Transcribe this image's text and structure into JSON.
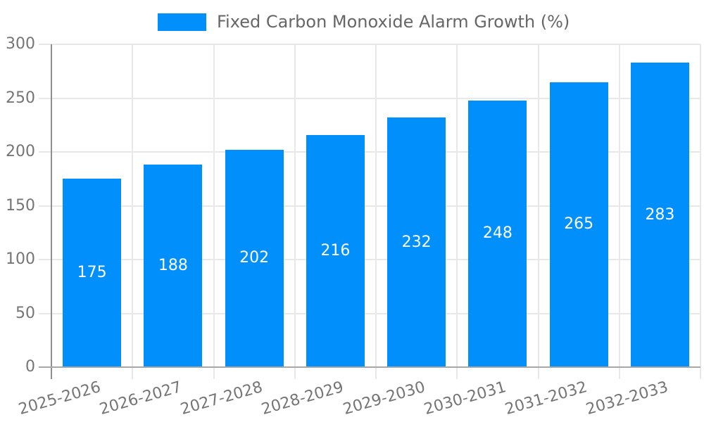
{
  "legend": {
    "label": "Fixed Carbon Monoxide Alarm Growth (%)"
  },
  "colors": {
    "bar": "#008FFB",
    "grid": "#e8e8e8",
    "y_axis": "#8f8f8f",
    "x_axis": "#a8a8a8",
    "tick_label": "#757575",
    "legend_text": "#666666",
    "value_label": "#ffffff",
    "background": "#ffffff"
  },
  "chart_data": {
    "type": "bar",
    "title": "",
    "categories": [
      "2025-2026",
      "2026-2027",
      "2027-2028",
      "2028-2029",
      "2029-2030",
      "2030-2031",
      "2031-2032",
      "2032-2033"
    ],
    "series": [
      {
        "name": "Fixed Carbon Monoxide Alarm Growth (%)",
        "values": [
          175,
          188,
          202,
          216,
          232,
          248,
          265,
          283
        ]
      }
    ],
    "value_labels": [
      "175",
      "188",
      "202",
      "216",
      "232",
      "248",
      "265",
      "283"
    ],
    "xlabel": "",
    "ylabel": "",
    "ylim": [
      0,
      300
    ],
    "yticks": [
      0,
      50,
      100,
      150,
      200,
      250,
      300
    ],
    "grid": true,
    "legend_position": "top-center",
    "value_label_position": "inside-center",
    "x_tick_rotation_deg": -16
  }
}
